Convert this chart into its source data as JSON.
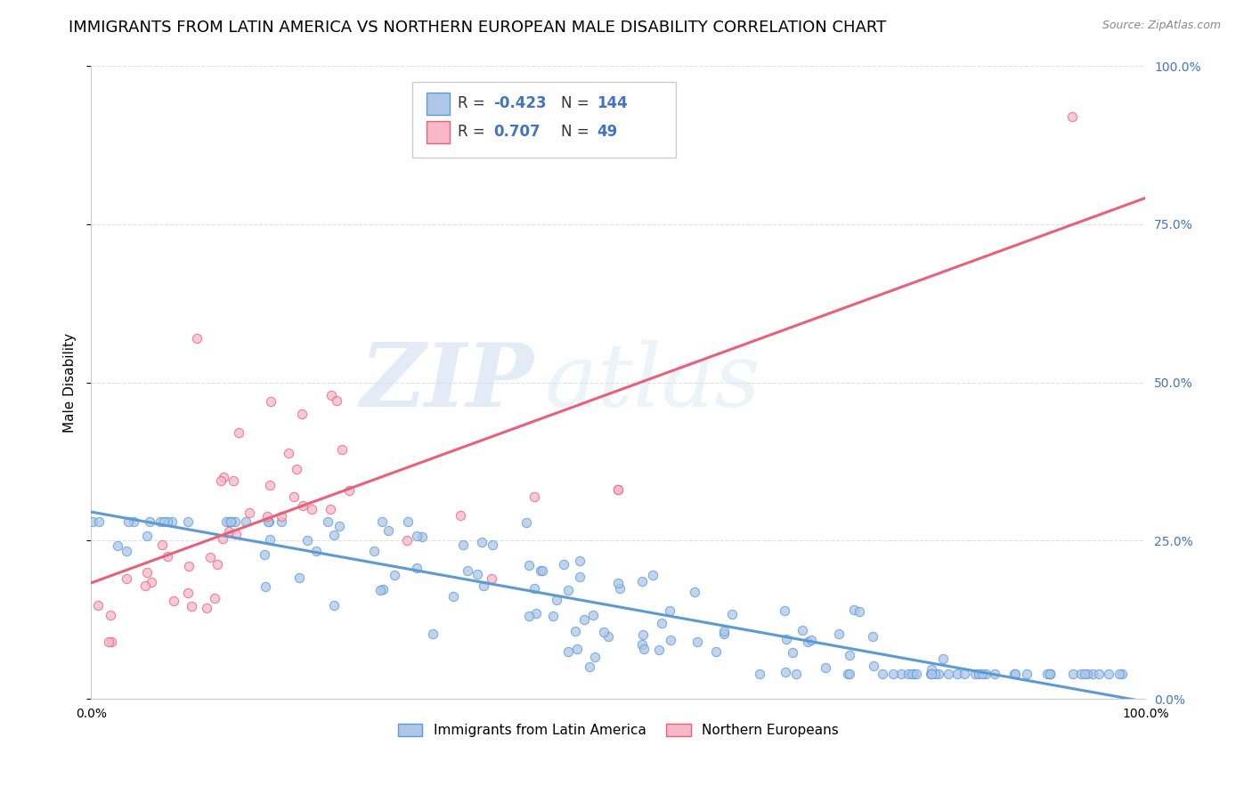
{
  "title": "IMMIGRANTS FROM LATIN AMERICA VS NORTHERN EUROPEAN MALE DISABILITY CORRELATION CHART",
  "source": "Source: ZipAtlas.com",
  "ylabel": "Male Disability",
  "r_blue": -0.423,
  "n_blue": 144,
  "r_pink": 0.707,
  "n_pink": 49,
  "blue_color": "#aec6e8",
  "blue_edge_color": "#5b9bd5",
  "pink_color": "#f9b8c8",
  "pink_edge_color": "#e8607a",
  "blue_line_color": "#5b9bd5",
  "pink_line_color": "#e8607a",
  "legend_label_blue": "Immigrants from Latin America",
  "legend_label_pink": "Northern Europeans",
  "watermark_zip": "ZIP",
  "watermark_atlas": "atlas",
  "title_fontsize": 13,
  "axis_label_fontsize": 11,
  "tick_fontsize": 10,
  "legend_fontsize": 11,
  "right_tick_color": "#4472C4"
}
